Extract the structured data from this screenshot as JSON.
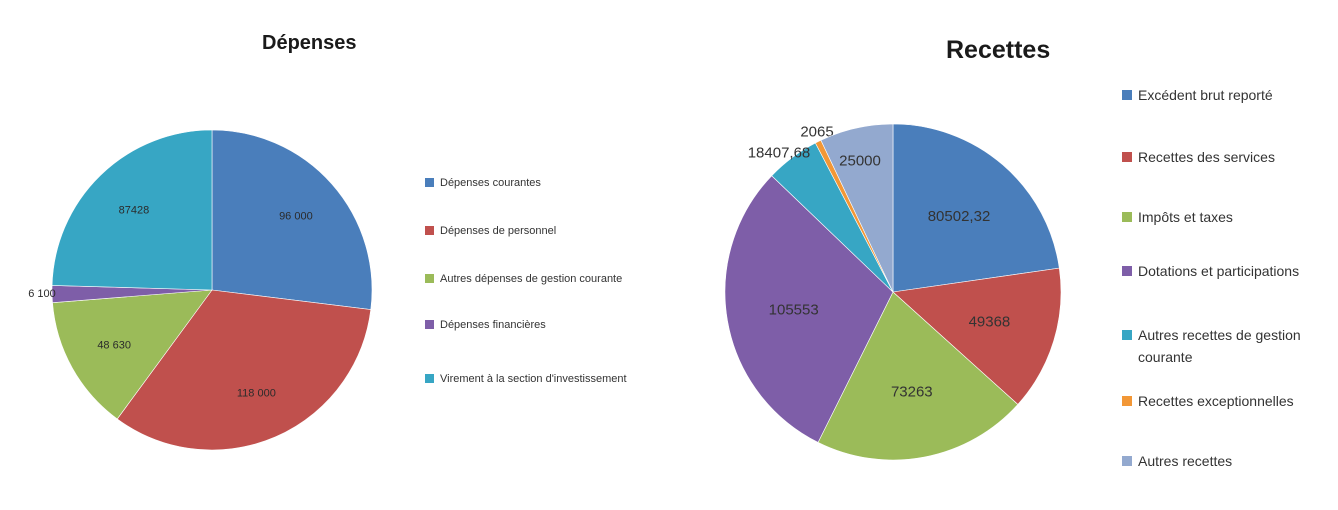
{
  "chart_data": [
    {
      "type": "pie",
      "title": "Dépenses",
      "slices": [
        {
          "label": "Dépenses courantes",
          "value": 96000,
          "display": "96 000",
          "color": "#4a7ebb"
        },
        {
          "label": "Dépenses de personnel",
          "value": 118000,
          "display": "118 000",
          "color": "#c0504d"
        },
        {
          "label": "Autres dépenses de gestion courante",
          "value": 48630,
          "display": "48 630",
          "color": "#9bbb59"
        },
        {
          "label": "Dépenses financières",
          "value": 6100,
          "display": "6 100",
          "color": "#7e5ea8"
        },
        {
          "label": "Virement à la section d'investissement",
          "value": 87428,
          "display": "87428",
          "color": "#37a6c4"
        }
      ],
      "legend_position": "right",
      "start_angle_deg": 0
    },
    {
      "type": "pie",
      "title": "Recettes",
      "slices": [
        {
          "label": "Excédent brut reporté",
          "value": 80502.32,
          "display": "80502,32",
          "color": "#4a7ebb"
        },
        {
          "label": "Recettes des services",
          "value": 49368,
          "display": "49368",
          "color": "#c0504d"
        },
        {
          "label": "Impôts et taxes",
          "value": 73263,
          "display": "73263",
          "color": "#9bbb59"
        },
        {
          "label": "Dotations et participations",
          "value": 105553,
          "display": "105553",
          "color": "#7e5ea8"
        },
        {
          "label": "Autres recettes de gestion courante",
          "value": 18407.68,
          "display": "18407,68",
          "color": "#37a6c4"
        },
        {
          "label": "Recettes exceptionnelles",
          "value": 2065,
          "display": "2065",
          "color": "#f29736"
        },
        {
          "label": "Autres recettes",
          "value": 25000,
          "display": "25000",
          "color": "#93a9cf"
        }
      ],
      "legend_position": "right",
      "start_angle_deg": 0
    }
  ]
}
